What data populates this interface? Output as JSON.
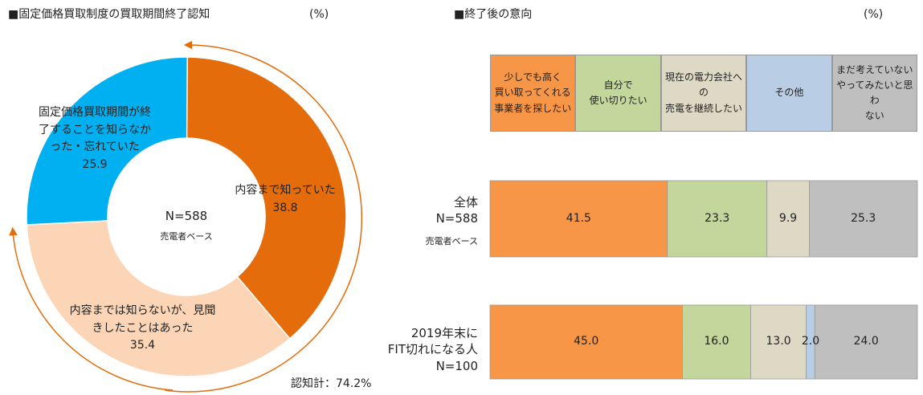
{
  "chart_data": [
    {
      "type": "donut",
      "title": "■固定価格買取制度の買取期間終了認知",
      "unit": "(%)",
      "categories": [
        "内容まで知っていた",
        "内容までは知らないが、見聞きしたことはあった",
        "固定価格買取期間が終了することを知らなかった・忘れていた"
      ],
      "values": [
        38.8,
        35.4,
        25.9
      ],
      "colors": [
        "#E46C0A",
        "#FBD5B5",
        "#00B0F0"
      ],
      "center_label": "N=588",
      "center_note": "売電者ベース",
      "annotation": "認知計：74.2%"
    },
    {
      "type": "stacked_barh",
      "title": "■終了後の意向",
      "unit": "(%)",
      "categories": [
        "全体\nN=588",
        "2019年末に\nFIT切れになる人\nN=100"
      ],
      "category_note": "売電者ベース",
      "xlim": [
        0,
        100
      ],
      "series": [
        {
          "name": "少しでも高く\n買い取ってくれる\n事業者を探したい",
          "color": "#F79646",
          "values": [
            41.5,
            45.0
          ],
          "value_labels": [
            "41.5",
            "45.0"
          ]
        },
        {
          "name": "自分で\n使い切りたい",
          "color": "#C3D69B",
          "values": [
            23.3,
            16.0
          ],
          "value_labels": [
            "23.3",
            "16.0"
          ]
        },
        {
          "name": "現在の電力会社へ\nの\n売電を継続したい",
          "color": "#DDD9C4",
          "values": [
            9.9,
            13.0
          ],
          "value_labels": [
            "9.9",
            "13.0"
          ]
        },
        {
          "name": "その他",
          "color": "#B9CDE5",
          "values": [
            0,
            2.0
          ],
          "value_labels": [
            null,
            "2.0"
          ]
        },
        {
          "name": "まだ考えていない\nやってみたいと思わ\nない",
          "color": "#BFBFBF",
          "values": [
            25.3,
            24.0
          ],
          "value_labels": [
            "25.3",
            "24.0"
          ]
        }
      ]
    }
  ]
}
